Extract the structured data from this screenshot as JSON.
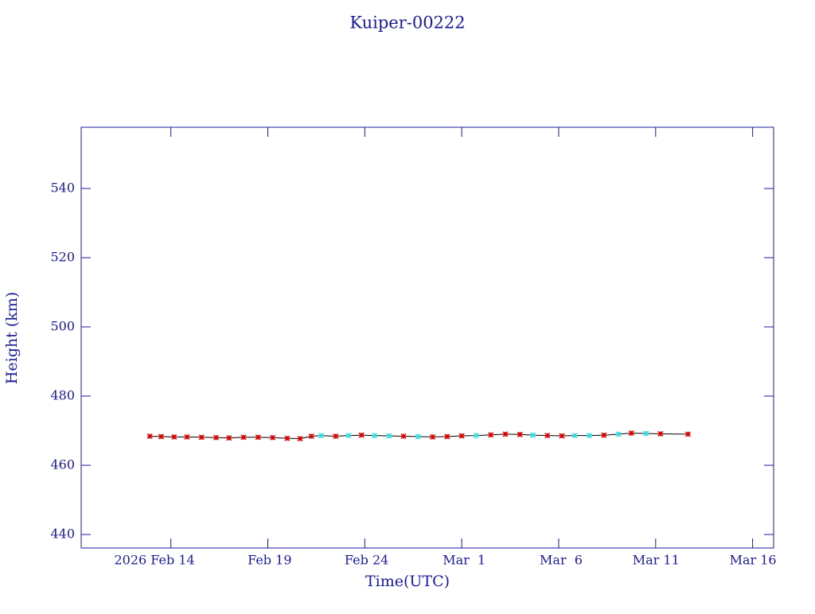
{
  "chart_data": {
    "type": "line",
    "title": "Kuiper-00222",
    "x_label": "Time(UTC)",
    "y_label": "Height (km)",
    "xlim": [
      "2026-02-09T09:00",
      "2026-03-17T02:00"
    ],
    "xticks": [
      {
        "value": "2026-02-14T00:00",
        "label": "2026 Feb 14"
      },
      {
        "value": "2026-02-19T00:00",
        "label": "Feb 19"
      },
      {
        "value": "2026-02-24T00:00",
        "label": "Feb 24"
      },
      {
        "value": "2026-03-01T00:00",
        "label": "Mar  1"
      },
      {
        "value": "2026-03-06T00:00",
        "label": "Mar  6"
      },
      {
        "value": "2026-03-11T00:00",
        "label": "Mar 11"
      },
      {
        "value": "2026-03-16T00:00",
        "label": "Mar 16"
      }
    ],
    "ylim": [
      436.1,
      557.7
    ],
    "yticks": [
      440,
      460,
      480,
      500,
      520,
      540
    ],
    "line_color": "#000000",
    "series": [
      {
        "x": [
          "2026-02-12T22:00",
          "2026-02-13T12:00",
          "2026-02-14T04:00",
          "2026-02-14T20:00",
          "2026-02-15T14:00",
          "2026-02-16T08:00",
          "2026-02-17T00:00",
          "2026-02-17T18:00",
          "2026-02-18T12:00",
          "2026-02-19T06:00",
          "2026-02-20T00:00",
          "2026-02-20T16:00",
          "2026-02-21T06:00",
          "2026-02-21T18:00",
          "2026-02-22T12:00",
          "2026-02-23T04:00",
          "2026-02-23T20:00",
          "2026-02-24T12:00",
          "2026-02-25T06:00",
          "2026-02-26T00:00",
          "2026-02-26T18:00",
          "2026-02-27T12:00",
          "2026-02-28T06:00",
          "2026-03-01T00:00",
          "2026-03-01T18:00",
          "2026-03-02T12:00",
          "2026-03-03T06:00",
          "2026-03-04T00:00",
          "2026-03-04T16:00",
          "2026-03-05T10:00",
          "2026-03-06T04:00",
          "2026-03-06T20:00",
          "2026-03-07T14:00",
          "2026-03-08T08:00",
          "2026-03-09T02:00",
          "2026-03-09T18:00",
          "2026-03-10T12:00",
          "2026-03-11T06:00",
          "2026-03-12T16:00"
        ],
        "values": [
          468.4,
          468.3,
          468.2,
          468.2,
          468.1,
          468.0,
          467.9,
          468.1,
          468.1,
          468.0,
          467.8,
          467.7,
          468.4,
          468.6,
          468.4,
          468.6,
          468.7,
          468.6,
          468.5,
          468.4,
          468.3,
          468.2,
          468.3,
          468.5,
          468.6,
          468.8,
          469.0,
          468.9,
          468.7,
          468.6,
          468.5,
          468.6,
          468.6,
          468.7,
          469.0,
          469.3,
          469.2,
          469.1,
          469.0
        ],
        "marker_colors": [
          "#dd0000",
          "#dd0000",
          "#dd0000",
          "#dd0000",
          "#dd0000",
          "#dd0000",
          "#dd0000",
          "#dd0000",
          "#dd0000",
          "#dd0000",
          "#dd0000",
          "#dd0000",
          "#dd0000",
          "#33dddd",
          "#dd0000",
          "#33dddd",
          "#dd0000",
          "#33dddd",
          "#33dddd",
          "#dd0000",
          "#33dddd",
          "#dd0000",
          "#dd0000",
          "#dd0000",
          "#33dddd",
          "#dd0000",
          "#dd0000",
          "#dd0000",
          "#33dddd",
          "#dd0000",
          "#dd0000",
          "#33dddd",
          "#33dddd",
          "#dd0000",
          "#33dddd",
          "#dd0000",
          "#33dddd",
          "#dd0000",
          "#dd0000"
        ]
      }
    ]
  }
}
